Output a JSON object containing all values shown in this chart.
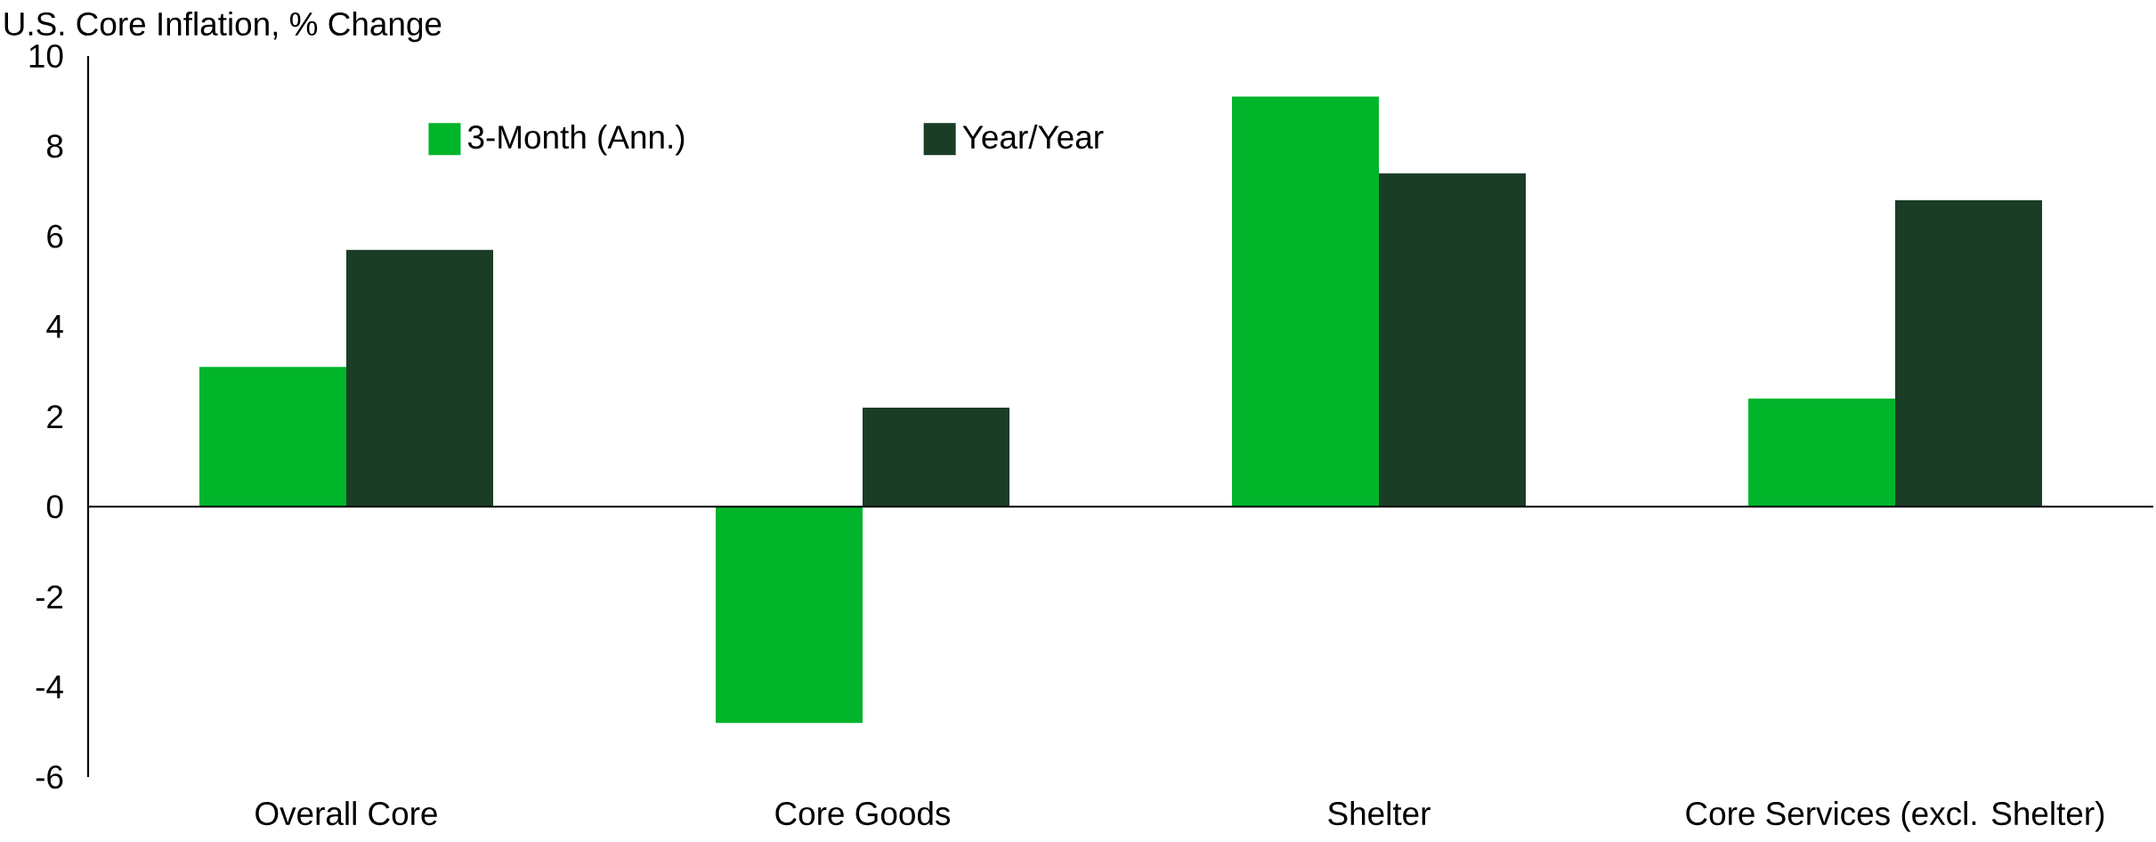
{
  "chart_data": {
    "type": "bar",
    "ylabel": "U.S. Core Inflation, % Change",
    "categories": [
      "Overall Core",
      "Core Goods",
      "Shelter",
      "Core Services (excl. Shelter)"
    ],
    "series": [
      {
        "name": "3-Month (Ann.)",
        "color": "#00b52a",
        "values": [
          3.1,
          -4.8,
          9.1,
          2.4
        ]
      },
      {
        "name": "Year/Year",
        "color": "#1a3d26",
        "values": [
          5.7,
          2.2,
          7.4,
          6.8
        ]
      }
    ],
    "ylim": [
      -6,
      10
    ],
    "yticks": [
      -6,
      -4,
      -2,
      0,
      2,
      4,
      6,
      8,
      10
    ],
    "legend": "top"
  }
}
